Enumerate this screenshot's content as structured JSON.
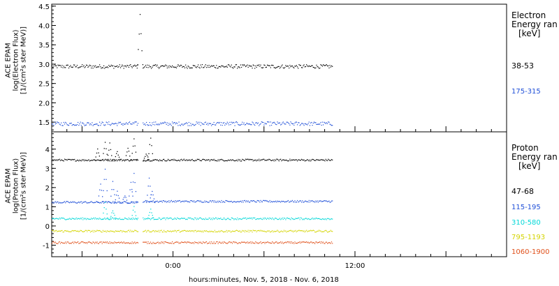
{
  "chart_data": [
    {
      "type": "scatter",
      "panel": "electron",
      "ylabel_lines": [
        "ACE EPAM",
        "log(Electron Flux)",
        "[1/(cm²s ster MeV)]"
      ],
      "legend_title": [
        "Electron",
        "Energy ran",
        "[keV]"
      ],
      "ylim": [
        1.25,
        4.55
      ],
      "yticks": [
        1.5,
        2.0,
        2.5,
        3.0,
        3.5,
        4.0,
        4.5
      ],
      "ytick_labels": [
        "1.5",
        "2.0",
        "2.5",
        "3.0",
        "3.5",
        "4.0",
        "4.5"
      ],
      "x_unit": "hours relative to 00:00 Nov. 6, 2018",
      "series": [
        {
          "name": "38-53",
          "color": "#000000",
          "segments": [
            {
              "x_start": -8.0,
              "x_end": -2.3,
              "level": 2.95
            },
            {
              "x_start": -2.0,
              "x_end": 10.5,
              "level": 2.95
            }
          ],
          "spikes": [
            {
              "x": -2.2,
              "y": 4.28
            }
          ]
        },
        {
          "name": "175-315",
          "color": "#1f4fd8",
          "segments": [
            {
              "x_start": -8.0,
              "x_end": -2.3,
              "level": 1.47
            },
            {
              "x_start": -2.0,
              "x_end": 10.5,
              "level": 1.47
            }
          ],
          "spikes": []
        }
      ]
    },
    {
      "type": "scatter",
      "panel": "proton",
      "ylabel_lines": [
        "ACE EPAM",
        "log(Proton Flux)",
        "[1/(cm²s ster MeV)]"
      ],
      "legend_title": [
        "Proton",
        "Energy ran",
        "[keV]"
      ],
      "ylim": [
        -1.6,
        4.9
      ],
      "yticks": [
        -1,
        0,
        1,
        2,
        3,
        4
      ],
      "ytick_labels": [
        "-1",
        "0",
        "1",
        "2",
        "3",
        "4"
      ],
      "x_unit": "hours relative to 00:00 Nov. 6, 2018",
      "series": [
        {
          "name": "47-68",
          "color": "#000000",
          "segments": [
            {
              "x_start": -8.0,
              "x_end": -2.3,
              "level": 3.45
            },
            {
              "x_start": -2.0,
              "x_end": 10.5,
              "level": 3.45
            }
          ],
          "spikes": [
            {
              "x": -5.0,
              "y": 4.0
            },
            {
              "x": -4.5,
              "y": 4.4
            },
            {
              "x": -4.2,
              "y": 4.3
            },
            {
              "x": -3.7,
              "y": 3.9
            },
            {
              "x": -3.0,
              "y": 4.1
            },
            {
              "x": -2.6,
              "y": 4.6
            },
            {
              "x": -1.5,
              "y": 4.6
            },
            {
              "x": -1.8,
              "y": 3.8
            }
          ]
        },
        {
          "name": "115-195",
          "color": "#1f4fd8",
          "segments": [
            {
              "x_start": -8.0,
              "x_end": -2.3,
              "level": 1.25
            },
            {
              "x_start": -2.0,
              "x_end": 10.5,
              "level": 1.3
            }
          ],
          "spikes": [
            {
              "x": -4.8,
              "y": 2.2
            },
            {
              "x": -4.5,
              "y": 3.0
            },
            {
              "x": -4.0,
              "y": 2.3
            },
            {
              "x": -3.7,
              "y": 1.8
            },
            {
              "x": -3.2,
              "y": 1.6
            },
            {
              "x": -2.8,
              "y": 2.3
            },
            {
              "x": -2.6,
              "y": 2.8
            },
            {
              "x": -1.6,
              "y": 2.5
            },
            {
              "x": -1.4,
              "y": 1.8
            }
          ]
        },
        {
          "name": "310-580",
          "color": "#00d8d8",
          "segments": [
            {
              "x_start": -8.0,
              "x_end": -2.3,
              "level": 0.4
            },
            {
              "x_start": -2.0,
              "x_end": 10.5,
              "level": 0.4
            }
          ],
          "spikes": [
            {
              "x": -4.5,
              "y": 1.2
            },
            {
              "x": -4.0,
              "y": 0.8
            },
            {
              "x": -2.6,
              "y": 1.0
            },
            {
              "x": -1.5,
              "y": 0.9
            }
          ]
        },
        {
          "name": "795-1193",
          "color": "#d4d400",
          "segments": [
            {
              "x_start": -8.0,
              "x_end": -2.3,
              "level": -0.25
            },
            {
              "x_start": -2.0,
              "x_end": 10.5,
              "level": -0.25
            }
          ],
          "spikes": []
        },
        {
          "name": "1060-1900",
          "color": "#e0501a",
          "segments": [
            {
              "x_start": -8.0,
              "x_end": -2.3,
              "level": -0.85
            },
            {
              "x_start": -2.0,
              "x_end": 10.5,
              "level": -0.85
            }
          ],
          "spikes": []
        }
      ]
    }
  ],
  "xaxis": {
    "xlim": [
      -8.0,
      22.0
    ],
    "major_ticks": [
      0,
      12
    ],
    "major_labels": [
      "0:00",
      "12:00"
    ],
    "minor_step_hours": 1,
    "title": "hours:minutes, Nov.  5, 2018 - Nov.  6, 2018"
  }
}
